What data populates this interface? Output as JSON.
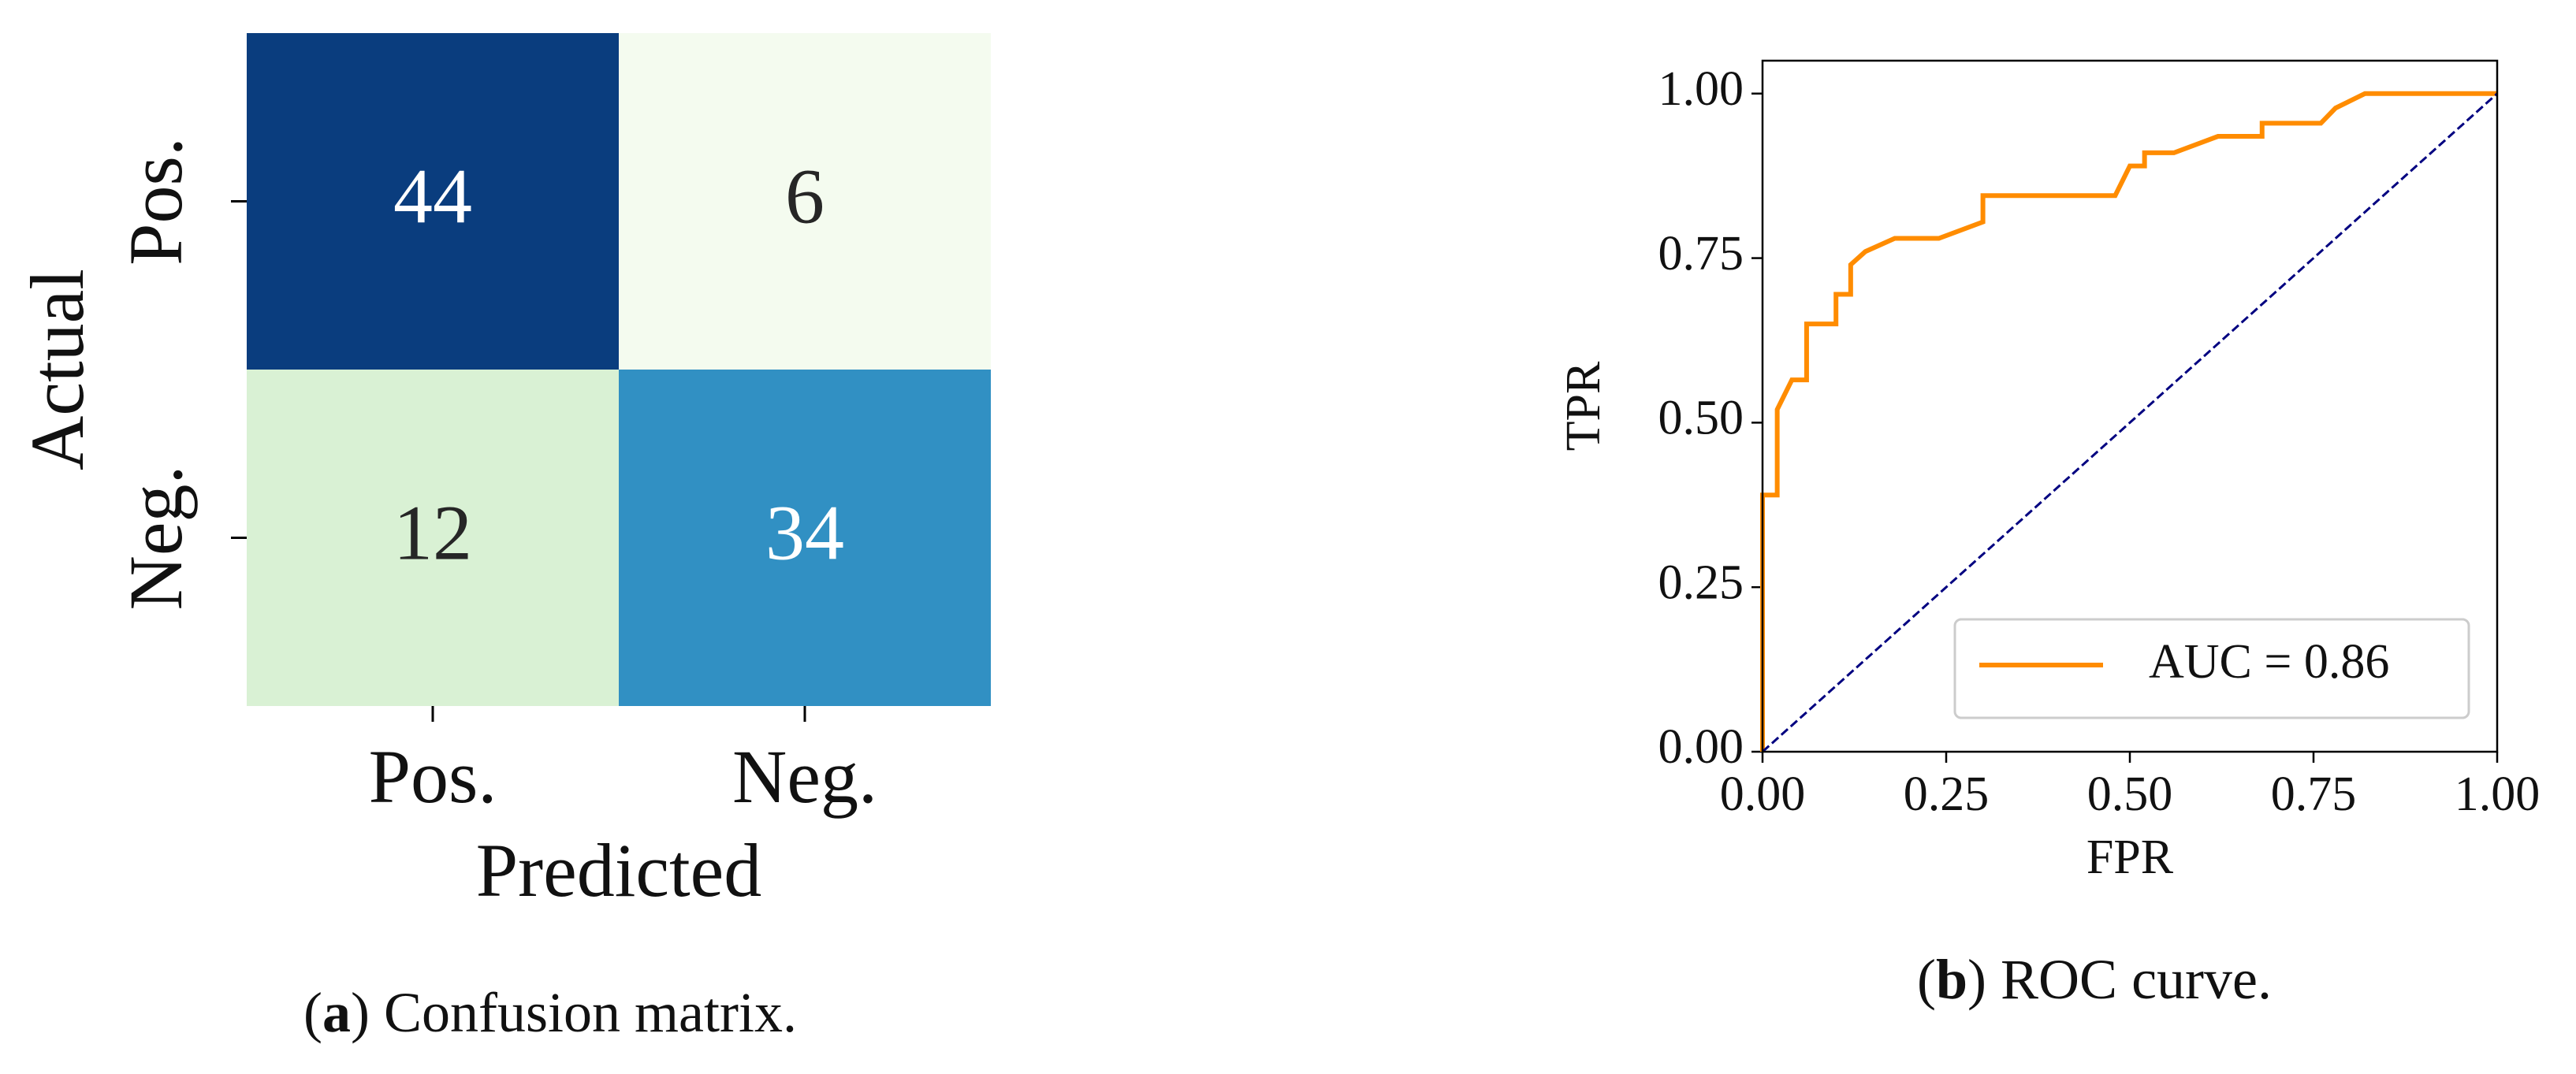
{
  "chart_data": [
    {
      "type": "heatmap",
      "x_label": "Predicted",
      "y_label": "Actual",
      "x_categories": [
        "Pos.",
        "Neg."
      ],
      "y_categories": [
        "Pos.",
        "Neg."
      ],
      "values": [
        [
          44,
          6
        ],
        [
          12,
          34
        ]
      ],
      "cell_colors": [
        [
          "#0a3d7e",
          "#f4fbef"
        ],
        [
          "#d9f1d4",
          "#3190c3"
        ]
      ],
      "caption": [
        "(",
        "a",
        ") Confusion matrix."
      ]
    },
    {
      "type": "line",
      "x_label": "FPR",
      "y_label": "TPR",
      "xlim": [
        0,
        1
      ],
      "ylim": [
        0,
        1.05
      ],
      "xticks": [
        {
          "value": 0,
          "label": "0.00"
        },
        {
          "value": 0.25,
          "label": "0.25"
        },
        {
          "value": 0.5,
          "label": "0.50"
        },
        {
          "value": 0.75,
          "label": "0.75"
        },
        {
          "value": 1,
          "label": "1.00"
        }
      ],
      "yticks": [
        {
          "value": 0,
          "label": "0.00"
        },
        {
          "value": 0.25,
          "label": "0.25"
        },
        {
          "value": 0.5,
          "label": "0.50"
        },
        {
          "value": 0.75,
          "label": "0.75"
        },
        {
          "value": 1,
          "label": "1.00"
        }
      ],
      "legend": "lower right",
      "series": [
        {
          "name": "AUC = 0.86",
          "color": "#ff8c00",
          "linestyle": "solid",
          "x": [
            0,
            0,
            0.02,
            0.02,
            0.04,
            0.06,
            0.06,
            0.1,
            0.1,
            0.12,
            0.12,
            0.14,
            0.18,
            0.24,
            0.3,
            0.3,
            0.48,
            0.5,
            0.52,
            0.52,
            0.56,
            0.62,
            0.68,
            0.68,
            0.76,
            0.78,
            0.82,
            1
          ],
          "values": [
            0,
            0.39,
            0.39,
            0.52,
            0.565,
            0.565,
            0.65,
            0.65,
            0.695,
            0.695,
            0.74,
            0.76,
            0.78,
            0.78,
            0.805,
            0.845,
            0.845,
            0.89,
            0.89,
            0.91,
            0.91,
            0.935,
            0.935,
            0.955,
            0.955,
            0.978,
            1,
            1
          ]
        },
        {
          "color": "#000080",
          "linestyle": "dashed",
          "x": [
            0,
            1
          ],
          "values": [
            0,
            1
          ]
        }
      ],
      "caption": [
        "(",
        "b",
        ") ROC curve."
      ]
    }
  ]
}
